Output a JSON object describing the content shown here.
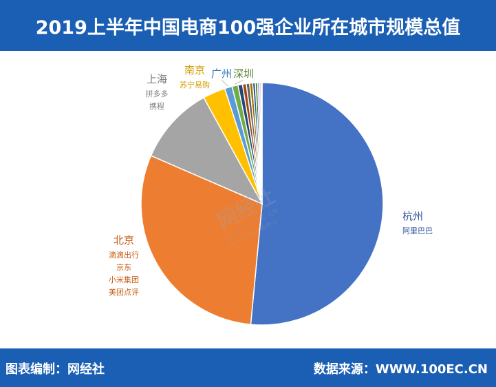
{
  "header": {
    "title": "2019上半年中国电商100强企业所在城市规模总值"
  },
  "footer": {
    "left_text": "图表编制：网经社",
    "right_text": "数据来源：WWW.100EC.CN"
  },
  "watermark": {
    "main": "网经社",
    "sub1": "WWW.100EC.CN",
    "sub2": "电子商务研究中心"
  },
  "chart_data": {
    "type": "pie",
    "title": "2019上半年中国电商100强企业所在城市规模总值",
    "start_angle_deg": 0,
    "direction": "clockwise",
    "legend": "none",
    "slices": [
      {
        "city": "杭州",
        "companies": [
          "阿里巴巴"
        ],
        "value": 51.5,
        "color": "#4472c4",
        "label_color": "#2f5597"
      },
      {
        "city": "北京",
        "companies": [
          "滴滴出行",
          "京东",
          "小米集团",
          "美团点评"
        ],
        "value": 30.0,
        "color": "#ed7d31",
        "label_color": "#c55a11"
      },
      {
        "city": "上海",
        "companies": [
          "拼多多",
          "携程"
        ],
        "value": 10.5,
        "color": "#a5a5a5",
        "label_color": "#7f7f7f"
      },
      {
        "city": "南京",
        "companies": [
          "苏宁易购"
        ],
        "value": 3.0,
        "color": "#ffc000",
        "label_color": "#d39e00"
      },
      {
        "city": "广州",
        "companies": [],
        "value": 1.0,
        "color": "#5b9bd5",
        "label_color": "#2e75b6"
      },
      {
        "city": "深圳",
        "companies": [],
        "value": 0.8,
        "color": "#70ad47",
        "label_color": "#548235"
      },
      {
        "city": "",
        "companies": [],
        "value": 0.6,
        "color": "#264478",
        "label_color": ""
      },
      {
        "city": "",
        "companies": [],
        "value": 0.5,
        "color": "#9e480e",
        "label_color": ""
      },
      {
        "city": "",
        "companies": [],
        "value": 0.45,
        "color": "#636363",
        "label_color": ""
      },
      {
        "city": "",
        "companies": [],
        "value": 0.4,
        "color": "#997300",
        "label_color": ""
      },
      {
        "city": "",
        "companies": [],
        "value": 0.35,
        "color": "#255e91",
        "label_color": ""
      },
      {
        "city": "",
        "companies": [],
        "value": 0.3,
        "color": "#43682b",
        "label_color": ""
      },
      {
        "city": "",
        "companies": [],
        "value": 0.25,
        "color": "#698ed0",
        "label_color": ""
      },
      {
        "city": "",
        "companies": [],
        "value": 0.2,
        "color": "#f1975a",
        "label_color": ""
      },
      {
        "city": "",
        "companies": [],
        "value": 0.15,
        "color": "#b7b7b7",
        "label_color": ""
      }
    ]
  }
}
